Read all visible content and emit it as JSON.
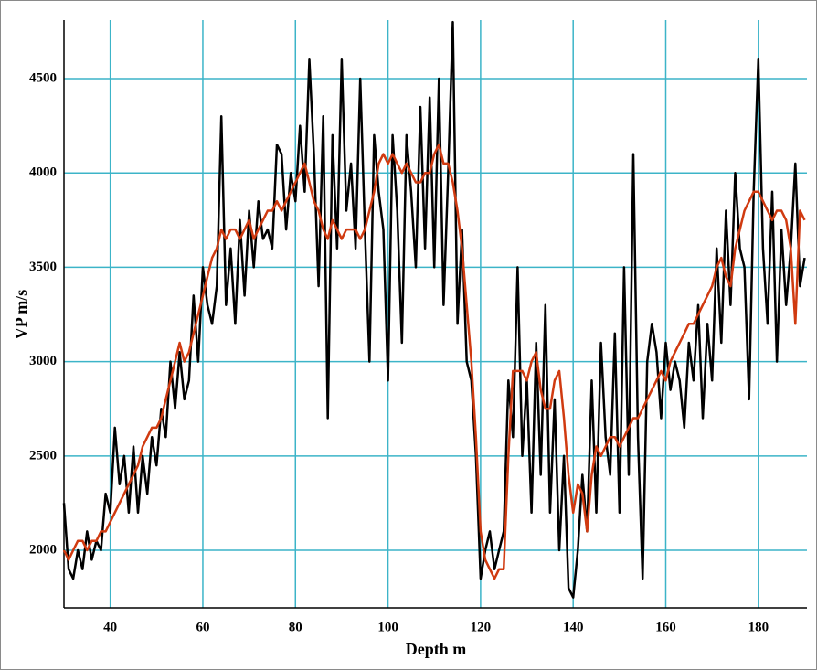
{
  "chart_data": {
    "type": "line",
    "x_label": "Depth m",
    "y_label": "VP m/s",
    "x": [
      30,
      31,
      32,
      33,
      34,
      35,
      36,
      37,
      38,
      39,
      40,
      41,
      42,
      43,
      44,
      45,
      46,
      47,
      48,
      49,
      50,
      51,
      52,
      53,
      54,
      55,
      56,
      57,
      58,
      59,
      60,
      61,
      62,
      63,
      64,
      65,
      66,
      67,
      68,
      69,
      70,
      71,
      72,
      73,
      74,
      75,
      76,
      77,
      78,
      79,
      80,
      81,
      82,
      83,
      84,
      85,
      86,
      87,
      88,
      89,
      90,
      91,
      92,
      93,
      94,
      95,
      96,
      97,
      98,
      99,
      100,
      101,
      102,
      103,
      104,
      105,
      106,
      107,
      108,
      109,
      110,
      111,
      112,
      113,
      114,
      115,
      116,
      117,
      118,
      119,
      120,
      121,
      122,
      123,
      124,
      125,
      126,
      127,
      128,
      129,
      130,
      131,
      132,
      133,
      134,
      135,
      136,
      137,
      138,
      139,
      140,
      141,
      142,
      143,
      144,
      145,
      146,
      147,
      148,
      149,
      150,
      151,
      152,
      153,
      154,
      155,
      156,
      157,
      158,
      159,
      160,
      161,
      162,
      163,
      164,
      165,
      166,
      167,
      168,
      169,
      170,
      171,
      172,
      173,
      174,
      175,
      176,
      177,
      178,
      179,
      180,
      181,
      182,
      183,
      184,
      185,
      186,
      187,
      188,
      189,
      190
    ],
    "series": [
      {
        "color": "#000000",
        "values": [
          2250,
          1900,
          1850,
          2000,
          1900,
          2100,
          1950,
          2050,
          2000,
          2300,
          2200,
          2650,
          2350,
          2500,
          2200,
          2550,
          2200,
          2500,
          2300,
          2600,
          2450,
          2750,
          2600,
          3000,
          2750,
          3050,
          2800,
          2900,
          3350,
          3000,
          3500,
          3300,
          3200,
          3400,
          4300,
          3300,
          3600,
          3200,
          3750,
          3350,
          3800,
          3500,
          3850,
          3650,
          3700,
          3600,
          4150,
          4100,
          3700,
          4000,
          3850,
          4250,
          3900,
          4600,
          4100,
          3400,
          4300,
          2700,
          4200,
          3600,
          4600,
          3800,
          4050,
          3600,
          4500,
          3700,
          3000,
          4200,
          3900,
          3700,
          2900,
          4200,
          3800,
          3100,
          4200,
          3900,
          3500,
          4350,
          3600,
          4400,
          3500,
          4500,
          3300,
          4000,
          4800,
          3200,
          3700,
          3000,
          2900,
          2500,
          1850,
          2000,
          2100,
          1900,
          2000,
          2100,
          2900,
          2600,
          3500,
          2500,
          2900,
          2200,
          3100,
          2400,
          3300,
          2200,
          2800,
          2000,
          2500,
          1800,
          1750,
          2000,
          2400,
          2100,
          2900,
          2200,
          3100,
          2600,
          2400,
          3150,
          2200,
          3500,
          2400,
          4100,
          2600,
          1850,
          3000,
          3200,
          3050,
          2700,
          3100,
          2850,
          3000,
          2900,
          2650,
          3100,
          2900,
          3300,
          2700,
          3200,
          2900,
          3600,
          3100,
          3800,
          3300,
          4000,
          3600,
          3500,
          2800,
          3900,
          4600,
          3600,
          3200,
          3900,
          3000,
          3700,
          3300,
          3600,
          4050,
          3400,
          3550
        ]
      },
      {
        "color": "#d03a10",
        "values": [
          2000,
          1950,
          2000,
          2050,
          2050,
          2000,
          2050,
          2050,
          2100,
          2100,
          2150,
          2200,
          2250,
          2300,
          2350,
          2400,
          2450,
          2550,
          2600,
          2650,
          2650,
          2700,
          2800,
          2900,
          3000,
          3100,
          3000,
          3050,
          3150,
          3250,
          3350,
          3450,
          3550,
          3600,
          3700,
          3650,
          3700,
          3700,
          3650,
          3700,
          3750,
          3650,
          3700,
          3750,
          3800,
          3800,
          3850,
          3800,
          3850,
          3900,
          3950,
          4000,
          4050,
          3950,
          3850,
          3800,
          3700,
          3650,
          3750,
          3700,
          3650,
          3700,
          3700,
          3700,
          3650,
          3700,
          3800,
          3900,
          4050,
          4100,
          4050,
          4100,
          4050,
          4000,
          4050,
          4000,
          3950,
          3950,
          4000,
          4000,
          4100,
          4150,
          4050,
          4050,
          3950,
          3800,
          3600,
          3300,
          3000,
          2600,
          2100,
          1950,
          1900,
          1850,
          1900,
          1900,
          2500,
          2950,
          2950,
          2950,
          2900,
          3000,
          3050,
          2850,
          2750,
          2750,
          2900,
          2950,
          2700,
          2400,
          2200,
          2350,
          2300,
          2100,
          2400,
          2550,
          2500,
          2550,
          2600,
          2600,
          2550,
          2600,
          2650,
          2700,
          2700,
          2750,
          2800,
          2850,
          2900,
          2950,
          2900,
          3000,
          3050,
          3100,
          3150,
          3200,
          3200,
          3250,
          3300,
          3350,
          3400,
          3500,
          3550,
          3450,
          3400,
          3600,
          3700,
          3800,
          3850,
          3900,
          3900,
          3850,
          3800,
          3750,
          3800,
          3800,
          3750,
          3600,
          3200,
          3800,
          3750
        ]
      }
    ],
    "xlim": [
      30,
      190.5
    ],
    "ylim": [
      1695,
      4810
    ],
    "xticks": [
      40,
      60,
      80,
      100,
      120,
      140,
      160,
      180
    ],
    "yticks": [
      2000,
      2500,
      3000,
      3500,
      4000,
      4500
    ],
    "grid": true,
    "grid_color": "#3cb4c8"
  }
}
